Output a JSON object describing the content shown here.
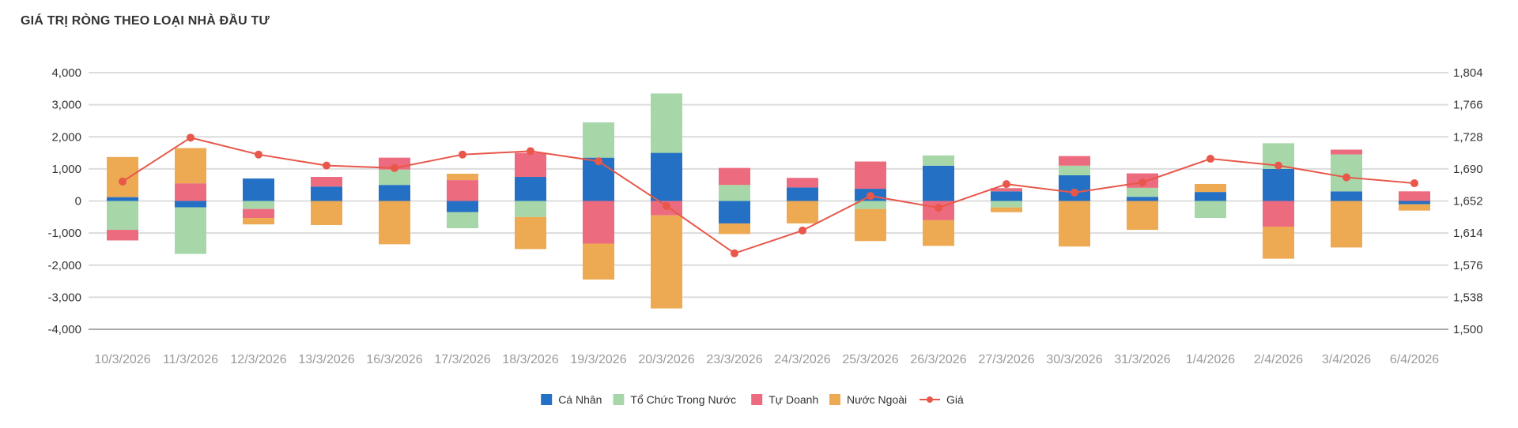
{
  "chart_data": {
    "type": "bar",
    "stacked": true,
    "title": "GIÁ TRỊ RÒNG THEO LOẠI NHÀ ĐẦU TƯ",
    "categories": [
      "10/3/2026",
      "11/3/2026",
      "12/3/2026",
      "13/3/2026",
      "16/3/2026",
      "17/3/2026",
      "18/3/2026",
      "19/3/2026",
      "20/3/2026",
      "23/3/2026",
      "24/3/2026",
      "25/3/2026",
      "26/3/2026",
      "27/3/2026",
      "30/3/2026",
      "31/3/2026",
      "1/4/2026",
      "2/4/2026",
      "3/4/2026",
      "6/4/2026"
    ],
    "ylim": [
      -4000,
      4000
    ],
    "y_ticks": [
      "4,000",
      "3,000",
      "2,000",
      "1,000",
      "0",
      "-1,000",
      "-2,000",
      "-3,000",
      "-4,000"
    ],
    "y2lim": [
      1500,
      1804
    ],
    "y2_ticks": [
      "1,804",
      "1,766",
      "1,728",
      "1,690",
      "1,652",
      "1,614",
      "1,576",
      "1,538",
      "1,500"
    ],
    "grid": true,
    "legend_position": "bottom",
    "series": [
      {
        "name": "Cá Nhân",
        "color": "#2470c4",
        "values": [
          120,
          -200,
          700,
          450,
          500,
          -350,
          750,
          1350,
          1500,
          -700,
          420,
          380,
          1100,
          300,
          800,
          130,
          280,
          1000,
          300,
          -100
        ]
      },
      {
        "name": "Tổ Chức Trong Nước",
        "color": "#a7d7a9",
        "values": [
          -900,
          -1450,
          -250,
          0,
          480,
          -500,
          -500,
          1100,
          1850,
          500,
          0,
          -250,
          320,
          -200,
          300,
          280,
          -530,
          800,
          1150,
          0
        ]
      },
      {
        "name": "Tự Doanh",
        "color": "#ed6b7e",
        "values": [
          -330,
          550,
          -280,
          300,
          370,
          650,
          750,
          -1330,
          -450,
          530,
          300,
          850,
          -600,
          100,
          300,
          450,
          0,
          -800,
          150,
          300
        ]
      },
      {
        "name": "Nước Ngoài",
        "color": "#edaa52",
        "values": [
          1250,
          1100,
          -200,
          -750,
          -1350,
          200,
          -1000,
          -1120,
          -2900,
          -330,
          -700,
          -1000,
          -800,
          -150,
          -1420,
          -900,
          250,
          -1000,
          -1450,
          -200
        ]
      }
    ],
    "line": {
      "name": "Giá",
      "color": "#e8574a",
      "axis": "right",
      "values": [
        1675,
        1727,
        1707,
        1694,
        1691,
        1707,
        1711,
        1699,
        1646,
        1590,
        1617,
        1658,
        1644,
        1672,
        1662,
        1674,
        1702,
        1694,
        1680,
        1673
      ]
    }
  }
}
